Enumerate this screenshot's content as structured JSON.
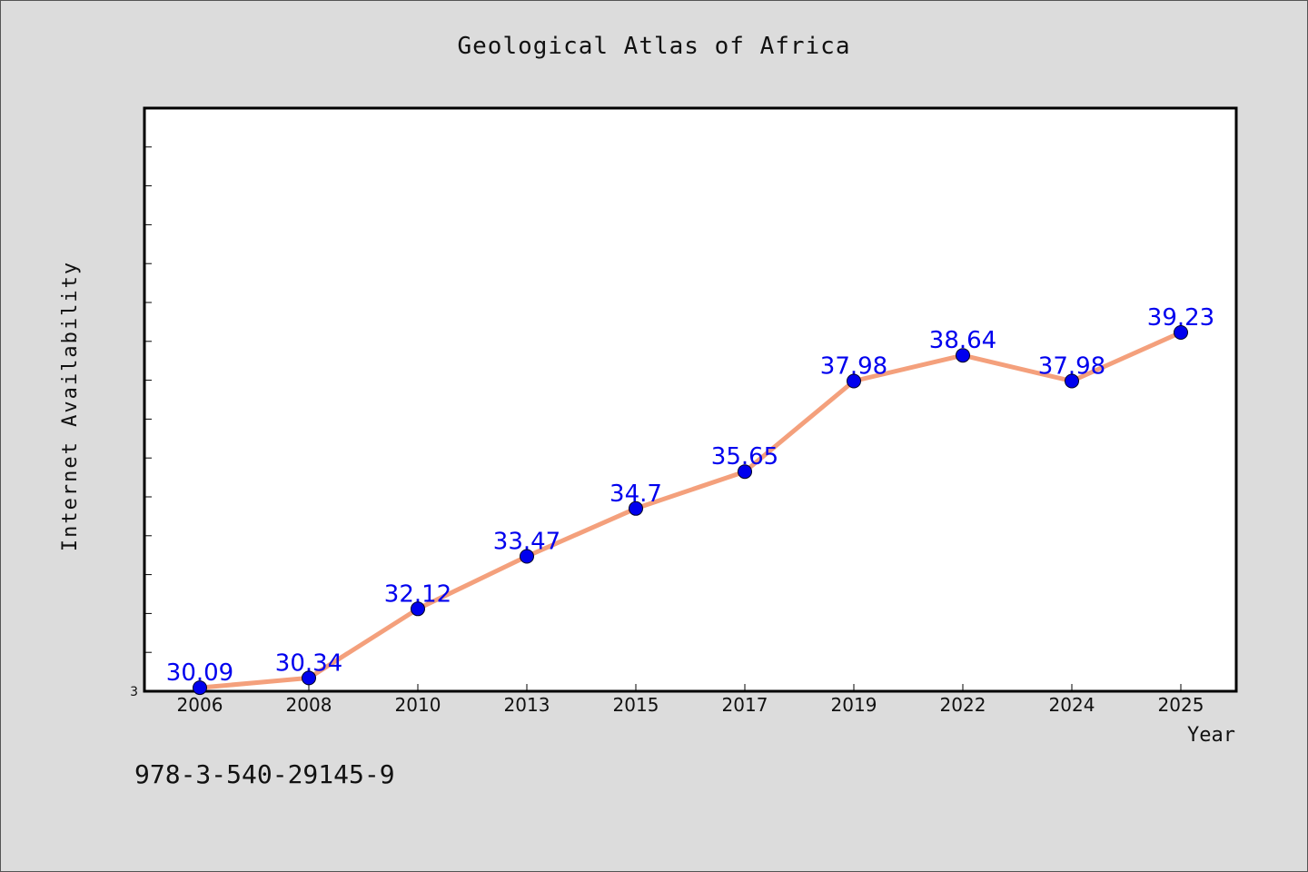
{
  "chart_data": {
    "type": "line",
    "title": "Geological Atlas of Africa",
    "xlabel": "Year",
    "ylabel": "Internet Availability",
    "categories": [
      "2006",
      "2008",
      "2010",
      "2013",
      "2015",
      "2017",
      "2019",
      "2022",
      "2024",
      "2025"
    ],
    "series": [
      {
        "values": [
          30.09,
          30.34,
          32.12,
          33.47,
          34.7,
          35.65,
          37.98,
          38.64,
          37.98,
          39.23
        ],
        "data_labels": [
          "30.09",
          "30.34",
          "32.12",
          "33.47",
          "34.7",
          "35.65",
          "37.98",
          "38.64",
          "37.98",
          "39.23"
        ],
        "line_color": "#f4a07c",
        "marker_color": "#0000ee"
      }
    ],
    "y_tick_labels": [
      "3"
    ],
    "ylim": [
      30.0,
      45.0
    ],
    "grid": false,
    "legend": "none",
    "label_color": "#0000ee"
  },
  "footer": {
    "code": "978-3-540-29145-9"
  }
}
